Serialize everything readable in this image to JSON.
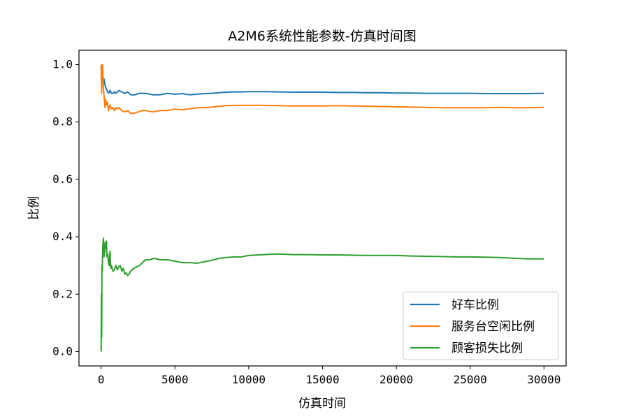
{
  "chart_data": {
    "type": "line",
    "title": "A2M6系统性能参数-仿真时间图",
    "xlabel": "仿真时间",
    "ylabel": "比例",
    "xlim": [
      -1500,
      31500
    ],
    "ylim": [
      -0.05,
      1.05
    ],
    "xticks": [
      0,
      5000,
      10000,
      15000,
      20000,
      25000,
      30000
    ],
    "yticks": [
      0.0,
      0.2,
      0.4,
      0.6,
      0.8,
      1.0
    ],
    "xtick_labels": [
      "0",
      "5000",
      "10000",
      "15000",
      "20000",
      "25000",
      "30000"
    ],
    "ytick_labels": [
      "0.0",
      "0.2",
      "0.4",
      "0.6",
      "0.8",
      "1.0"
    ],
    "grid": false,
    "legend_position": "lower-right",
    "series": [
      {
        "name": "好车比例",
        "color": "#1f77b4",
        "x": [
          0,
          40,
          80,
          120,
          160,
          200,
          260,
          320,
          400,
          500,
          600,
          700,
          800,
          900,
          1000,
          1200,
          1400,
          1600,
          1800,
          2000,
          2300,
          2600,
          3000,
          3500,
          4000,
          4500,
          5000,
          5500,
          6000,
          6500,
          7000,
          7500,
          8000,
          8500,
          9000,
          9500,
          10000,
          11000,
          12000,
          13000,
          14000,
          15000,
          16000,
          17000,
          18000,
          19000,
          20000,
          21000,
          22000,
          23000,
          24000,
          25000,
          26000,
          27000,
          28000,
          29000,
          30000
        ],
        "values": [
          1.0,
          0.95,
          0.93,
          0.96,
          0.94,
          0.95,
          0.93,
          0.92,
          0.91,
          0.9,
          0.91,
          0.9,
          0.9,
          0.905,
          0.9,
          0.91,
          0.905,
          0.9,
          0.905,
          0.895,
          0.895,
          0.9,
          0.9,
          0.895,
          0.895,
          0.9,
          0.897,
          0.899,
          0.895,
          0.897,
          0.899,
          0.9,
          0.902,
          0.904,
          0.905,
          0.905,
          0.906,
          0.906,
          0.905,
          0.904,
          0.904,
          0.904,
          0.903,
          0.903,
          0.902,
          0.902,
          0.901,
          0.901,
          0.9,
          0.9,
          0.9,
          0.9,
          0.899,
          0.899,
          0.899,
          0.899,
          0.9
        ]
      },
      {
        "name": "服务台空闲比例",
        "color": "#ff7f0e",
        "x": [
          0,
          30,
          60,
          100,
          140,
          180,
          220,
          260,
          300,
          360,
          420,
          500,
          600,
          700,
          800,
          900,
          1000,
          1100,
          1200,
          1400,
          1600,
          1800,
          2000,
          2200,
          2500,
          2800,
          3000,
          3500,
          4000,
          4500,
          5000,
          5500,
          6000,
          6500,
          7000,
          7500,
          8000,
          8500,
          9000,
          9500,
          10000,
          11000,
          12000,
          13000,
          14000,
          15000,
          16000,
          17000,
          18000,
          19000,
          20000,
          21000,
          22000,
          23000,
          24000,
          25000,
          26000,
          27000,
          28000,
          29000,
          30000
        ],
        "values": [
          1.0,
          0.9,
          0.96,
          1.0,
          0.94,
          0.9,
          0.88,
          0.85,
          0.88,
          0.86,
          0.87,
          0.84,
          0.86,
          0.845,
          0.85,
          0.84,
          0.85,
          0.845,
          0.85,
          0.84,
          0.835,
          0.84,
          0.83,
          0.83,
          0.835,
          0.84,
          0.84,
          0.835,
          0.84,
          0.84,
          0.845,
          0.843,
          0.846,
          0.85,
          0.85,
          0.852,
          0.855,
          0.857,
          0.858,
          0.858,
          0.858,
          0.858,
          0.857,
          0.856,
          0.856,
          0.856,
          0.857,
          0.856,
          0.855,
          0.854,
          0.853,
          0.852,
          0.851,
          0.85,
          0.85,
          0.85,
          0.85,
          0.851,
          0.85,
          0.85,
          0.851
        ]
      },
      {
        "name": "顾客损失比例",
        "color": "#2ca02c",
        "x": [
          0,
          20,
          40,
          60,
          80,
          100,
          130,
          160,
          200,
          240,
          280,
          320,
          360,
          400,
          450,
          500,
          550,
          600,
          650,
          700,
          800,
          900,
          1000,
          1100,
          1200,
          1300,
          1400,
          1500,
          1600,
          1700,
          1800,
          1900,
          2000,
          2200,
          2400,
          2600,
          2800,
          3000,
          3300,
          3600,
          4000,
          4500,
          5000,
          5500,
          6000,
          6500,
          7000,
          7500,
          8000,
          8500,
          9000,
          9500,
          10000,
          11000,
          12000,
          13000,
          14000,
          15000,
          16000,
          17000,
          18000,
          19000,
          20000,
          21000,
          22000,
          23000,
          24000,
          25000,
          26000,
          27000,
          28000,
          29000,
          30000
        ],
        "values": [
          0.0,
          0.2,
          0.05,
          0.3,
          0.28,
          0.35,
          0.38,
          0.395,
          0.33,
          0.35,
          0.38,
          0.36,
          0.385,
          0.33,
          0.34,
          0.31,
          0.3,
          0.35,
          0.29,
          0.3,
          0.28,
          0.285,
          0.3,
          0.285,
          0.295,
          0.3,
          0.28,
          0.29,
          0.27,
          0.275,
          0.265,
          0.27,
          0.28,
          0.29,
          0.295,
          0.3,
          0.31,
          0.32,
          0.32,
          0.325,
          0.32,
          0.32,
          0.315,
          0.31,
          0.31,
          0.308,
          0.313,
          0.318,
          0.325,
          0.328,
          0.33,
          0.33,
          0.335,
          0.338,
          0.34,
          0.338,
          0.338,
          0.337,
          0.337,
          0.336,
          0.335,
          0.335,
          0.335,
          0.333,
          0.332,
          0.331,
          0.33,
          0.33,
          0.329,
          0.328,
          0.325,
          0.323,
          0.323
        ]
      }
    ]
  }
}
